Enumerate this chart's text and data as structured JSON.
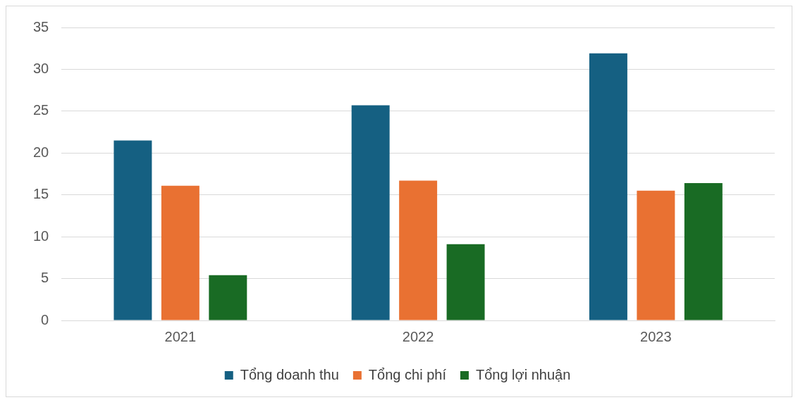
{
  "chart_data": {
    "type": "bar",
    "categories": [
      "2021",
      "2022",
      "2023"
    ],
    "series": [
      {
        "name": "Tổng doanh thu",
        "color": "#156082",
        "values": [
          21.5,
          25.7,
          31.9
        ]
      },
      {
        "name": "Tổng chi phí",
        "color": "#e97132",
        "values": [
          16.1,
          16.7,
          15.5
        ]
      },
      {
        "name": "Tổng lợi nhuận",
        "color": "#196b24",
        "values": [
          5.4,
          9.1,
          16.4
        ]
      }
    ],
    "ylim": [
      0,
      35
    ],
    "yticks": [
      0,
      5,
      10,
      15,
      20,
      25,
      30,
      35
    ],
    "grid": "y",
    "legend": "bottom"
  }
}
